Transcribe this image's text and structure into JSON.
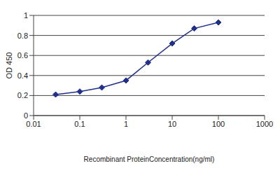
{
  "chart_data": {
    "type": "line",
    "x": [
      0.03,
      0.1,
      0.3,
      1,
      3,
      10,
      30,
      100
    ],
    "values": [
      0.21,
      0.24,
      0.28,
      0.35,
      0.53,
      0.72,
      0.87,
      0.93
    ],
    "color": "#1f2f8f",
    "marker": "diamond",
    "xlabel": "Recombinant ProteinConcentration(ng/ml)",
    "ylabel": "OD 450",
    "xlim": [
      0.01,
      1000
    ],
    "xticks": [
      0.01,
      0.1,
      1,
      10,
      100,
      1000
    ],
    "ylim": [
      0,
      1
    ],
    "yticks": [
      0,
      0.2,
      0.4,
      0.6,
      0.8,
      1
    ],
    "log": "x",
    "grid": true
  }
}
